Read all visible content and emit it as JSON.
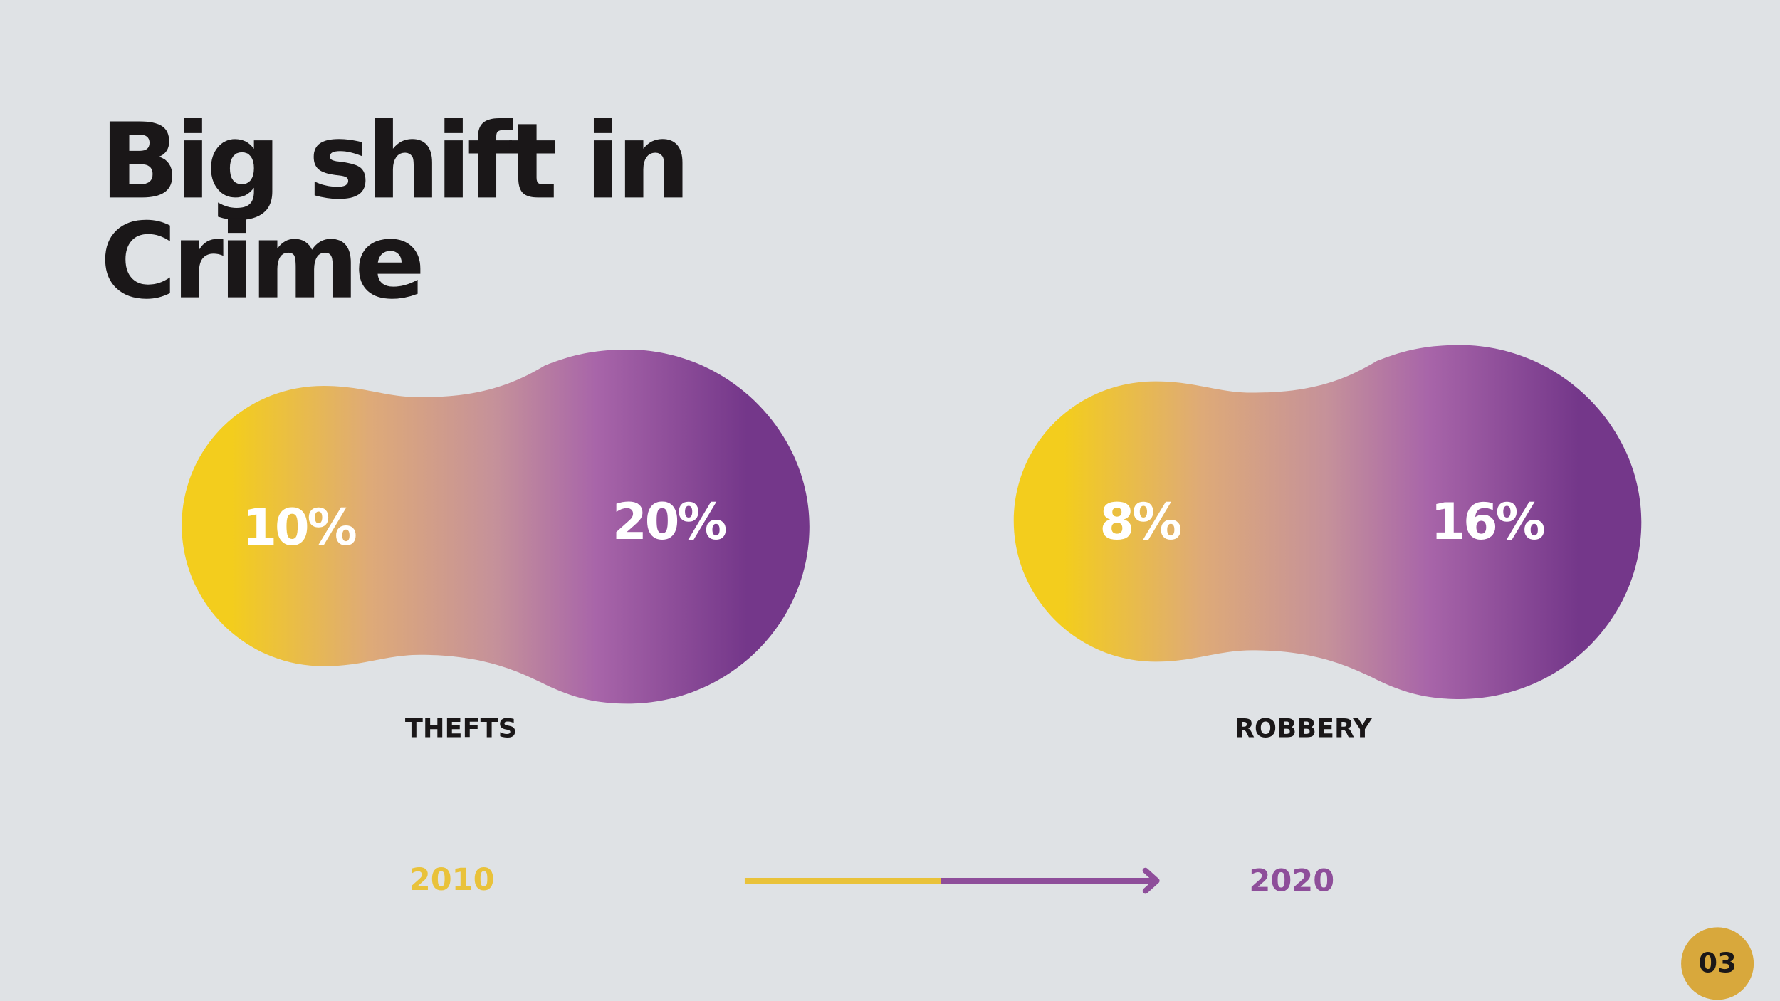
{
  "title": [
    "Big shift in",
    "Crime"
  ],
  "panels": [
    {
      "label": "THEFTS",
      "from": "10%",
      "to": "20%"
    },
    {
      "label": "ROBBERY",
      "from": "8%",
      "to": "16%"
    }
  ],
  "timeline": {
    "start": "2010",
    "end": "2020"
  },
  "page_number": "03"
}
